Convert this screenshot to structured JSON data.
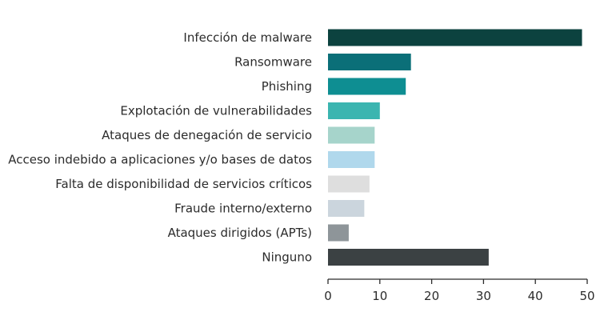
{
  "chart_data": {
    "type": "bar",
    "orientation": "horizontal",
    "title": "",
    "xlabel": "",
    "ylabel": "",
    "categories": [
      "Infección de malware",
      "Ransomware",
      "Phishing",
      "Explotación de vulnerabilidades",
      "Ataques de denegación de servicio",
      "Acceso indebido a aplicaciones y/o bases de datos",
      "Falta de disponibilidad de servicios críticos",
      "Fraude interno/externo",
      "Ataques dirigidos (APTs)",
      "Ninguno"
    ],
    "values": [
      49,
      16,
      15,
      10,
      9,
      9,
      8,
      7,
      4,
      31
    ],
    "colors": [
      "#0c423f",
      "#0b6f78",
      "#0e8e92",
      "#3bb5b0",
      "#a6d4cb",
      "#b0d8ec",
      "#dedede",
      "#cbd5dd",
      "#8e9599",
      "#3b4143"
    ],
    "xlim": [
      0,
      50
    ],
    "xticks": [
      0,
      10,
      20,
      30,
      40,
      50
    ],
    "grid": false,
    "legend": "none"
  }
}
